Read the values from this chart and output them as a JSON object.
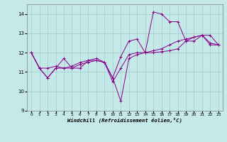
{
  "xlabel": "Windchill (Refroidissement éolien,°C)",
  "xlim": [
    -0.5,
    23.5
  ],
  "ylim": [
    9,
    14.5
  ],
  "yticks": [
    9,
    10,
    11,
    12,
    13,
    14
  ],
  "xticks": [
    0,
    1,
    2,
    3,
    4,
    5,
    6,
    7,
    8,
    9,
    10,
    11,
    12,
    13,
    14,
    15,
    16,
    17,
    18,
    19,
    20,
    21,
    22,
    23
  ],
  "bg_color": "#c5e8e8",
  "line_color": "#880088",
  "grid_color": "#9ecece",
  "line1": [
    12.0,
    11.2,
    10.7,
    11.2,
    11.7,
    11.2,
    11.2,
    11.6,
    11.6,
    11.5,
    10.7,
    9.5,
    11.7,
    11.9,
    12.0,
    12.0,
    12.05,
    12.1,
    12.2,
    12.6,
    12.8,
    12.9,
    12.4,
    12.4
  ],
  "line2": [
    12.0,
    11.2,
    10.7,
    11.2,
    11.2,
    11.2,
    11.4,
    11.5,
    11.6,
    11.5,
    10.5,
    11.2,
    11.9,
    12.0,
    12.0,
    12.1,
    12.2,
    12.4,
    12.6,
    12.7,
    12.8,
    12.9,
    12.5,
    12.4
  ],
  "line3": [
    12.0,
    11.2,
    11.2,
    11.3,
    11.2,
    11.3,
    11.5,
    11.6,
    11.7,
    11.5,
    10.7,
    11.8,
    12.6,
    12.7,
    12.0,
    14.1,
    14.0,
    13.6,
    13.6,
    12.6,
    12.6,
    12.9,
    12.9,
    12.4
  ]
}
